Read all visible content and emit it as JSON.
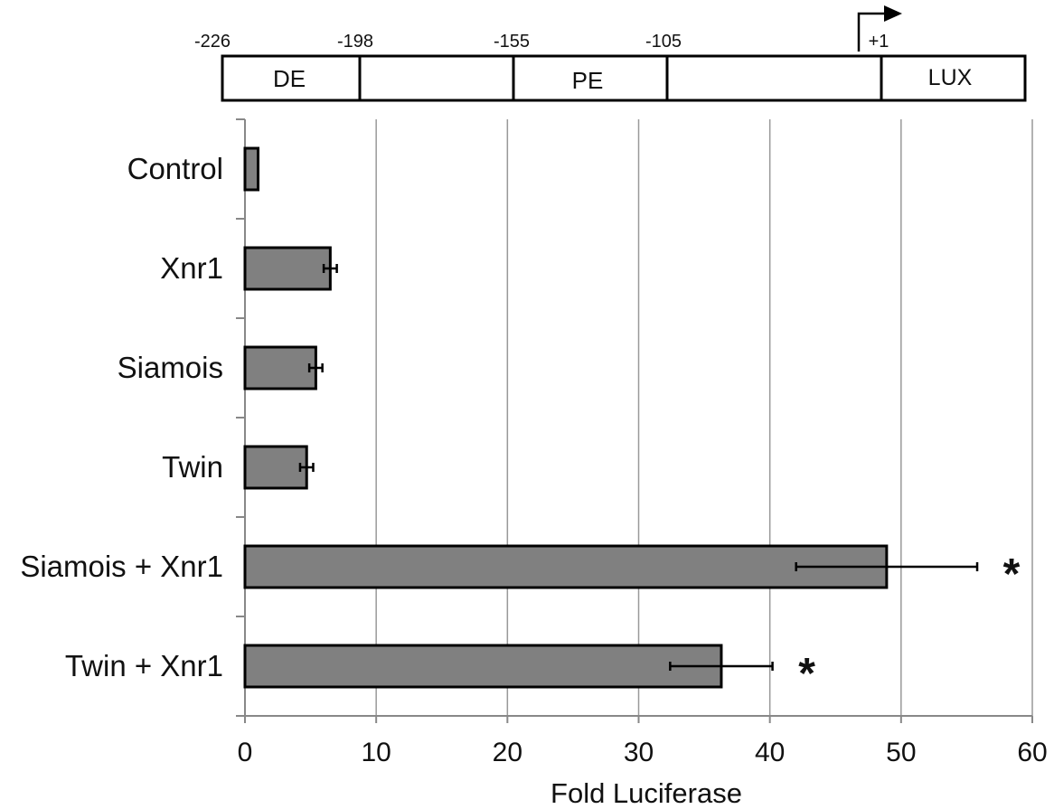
{
  "promoter": {
    "positions": [
      "-226",
      "-198",
      "-155",
      "-105",
      "+1"
    ],
    "regions": [
      "DE",
      "",
      "PE",
      "",
      "LUX"
    ]
  },
  "chart_data": {
    "type": "bar",
    "orientation": "horizontal",
    "categories": [
      "Control",
      "Xnr1",
      "Siamois",
      "Twin",
      "Siamois + Xnr1",
      "Twin + Xnr1"
    ],
    "values": [
      1,
      6.5,
      5.4,
      4.7,
      48.9,
      36.3
    ],
    "errors": [
      0,
      0.5,
      0.5,
      0.5,
      6.9,
      3.9
    ],
    "significance": [
      "",
      "",
      "",
      "",
      "*",
      "*"
    ],
    "xlabel": "Fold Luciferase",
    "xlim": [
      0,
      60
    ],
    "xticks": [
      0,
      10,
      20,
      30,
      40,
      50,
      60
    ],
    "grid": true,
    "bar_color": "#808080"
  }
}
